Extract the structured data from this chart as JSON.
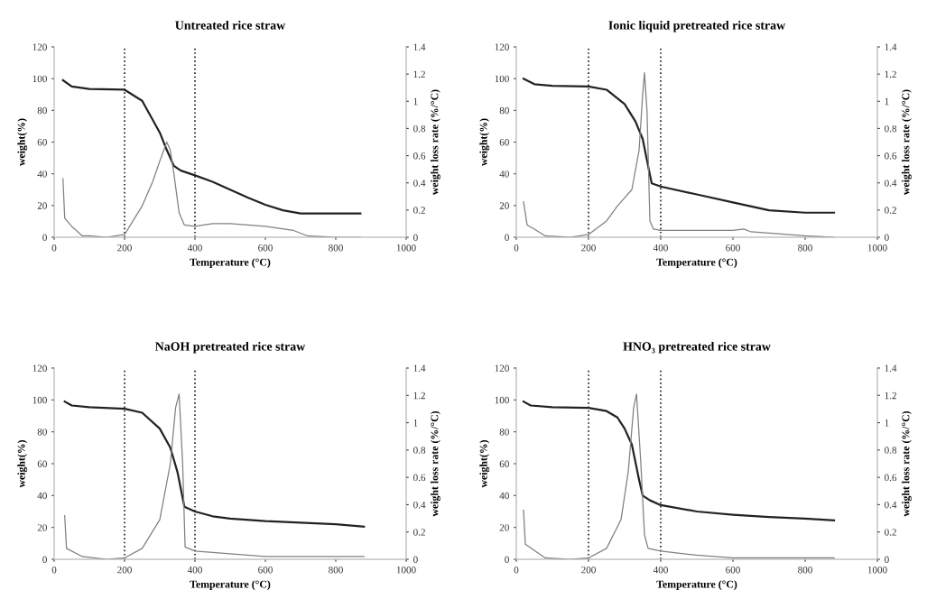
{
  "chart_data": [
    {
      "type": "line",
      "title": "Untreated rice straw",
      "xlabel": "Temperature (°C)",
      "ylabel": "weight(%)",
      "y2label": "weight loss rate (%/°C)",
      "xlim": [
        0,
        1000
      ],
      "xticks": [
        0,
        200,
        400,
        600,
        800,
        1000
      ],
      "ylim": [
        0,
        120
      ],
      "yticks": [
        0,
        20,
        40,
        60,
        80,
        100,
        120
      ],
      "y2lim": [
        0,
        1.4
      ],
      "y2ticks": [
        0,
        0.2,
        0.4,
        0.6,
        0.8,
        1,
        1.2,
        1.4
      ],
      "ref_lines": [
        {
          "axis": "x",
          "value": 200,
          "line_style": "dotted",
          "color": "#222222"
        },
        {
          "axis": "x",
          "value": 400,
          "line_style": "dotted",
          "color": "#222222"
        }
      ],
      "series": [
        {
          "color": "#222222",
          "x": [
            25,
            50,
            100,
            200,
            250,
            300,
            320,
            340,
            360,
            400,
            450,
            500,
            550,
            600,
            650,
            700,
            750,
            800,
            870
          ],
          "values": [
            99,
            95,
            93.5,
            93,
            86,
            66,
            55,
            45,
            42,
            39,
            35,
            30,
            25,
            20.5,
            17,
            15,
            15,
            15,
            15
          ]
        },
        {
          "color": "#808080",
          "axis": "y2",
          "x": [
            25,
            30,
            50,
            80,
            100,
            150,
            200,
            250,
            280,
            300,
            320,
            330,
            340,
            355,
            370,
            400,
            450,
            500,
            600,
            680,
            720,
            800,
            870
          ],
          "values": [
            0.43,
            0.14,
            0.08,
            0.01,
            0.01,
            0.0,
            0.02,
            0.23,
            0.41,
            0.56,
            0.7,
            0.64,
            0.47,
            0.18,
            0.09,
            0.08,
            0.1,
            0.1,
            0.08,
            0.05,
            0.01,
            0.0,
            0.0
          ]
        }
      ]
    },
    {
      "type": "line",
      "title": "Ionic liquid pretreated rice straw",
      "xlabel": "Temperature (°C)",
      "ylabel": "weight(%)",
      "y2label": "weight loss rate (%/°C)",
      "xlim": [
        0,
        1000
      ],
      "xticks": [
        0,
        200,
        400,
        600,
        800,
        1000
      ],
      "ylim": [
        0,
        120
      ],
      "yticks": [
        0,
        20,
        40,
        60,
        80,
        100,
        120
      ],
      "y2lim": [
        0,
        1.4
      ],
      "y2ticks": [
        0,
        0.2,
        0.4,
        0.6,
        0.8,
        1,
        1.2,
        1.4
      ],
      "ref_lines": [
        {
          "axis": "x",
          "value": 200,
          "line_style": "dotted",
          "color": "#222222"
        },
        {
          "axis": "x",
          "value": 400,
          "line_style": "dotted",
          "color": "#222222"
        }
      ],
      "series": [
        {
          "color": "#222222",
          "x": [
            20,
            50,
            100,
            200,
            250,
            300,
            330,
            350,
            365,
            375,
            400,
            500,
            600,
            700,
            800,
            880
          ],
          "values": [
            100,
            96.5,
            95.5,
            95,
            93,
            84,
            73,
            62,
            45,
            34,
            32,
            27,
            22,
            17,
            15.5,
            15.5
          ]
        },
        {
          "color": "#808080",
          "axis": "y2",
          "x": [
            20,
            30,
            50,
            80,
            150,
            200,
            250,
            280,
            320,
            340,
            350,
            355,
            362,
            370,
            380,
            400,
            600,
            630,
            650,
            750,
            800,
            880
          ],
          "values": [
            0.26,
            0.09,
            0.06,
            0.01,
            0.0,
            0.02,
            0.12,
            0.23,
            0.35,
            0.64,
            1.05,
            1.21,
            0.93,
            0.12,
            0.06,
            0.05,
            0.05,
            0.06,
            0.04,
            0.02,
            0.01,
            0.0
          ]
        }
      ]
    },
    {
      "type": "line",
      "title": "NaOH pretreated rice straw",
      "xlabel": "Temperature (°C)",
      "ylabel": "weight(%)",
      "y2label": "weight loss rate (%/°C)",
      "xlim": [
        0,
        1000
      ],
      "xticks": [
        0,
        200,
        400,
        600,
        800,
        1000
      ],
      "ylim": [
        0,
        120
      ],
      "yticks": [
        0,
        20,
        40,
        60,
        80,
        100,
        120
      ],
      "y2lim": [
        0,
        1.4
      ],
      "y2ticks": [
        0,
        0.2,
        0.4,
        0.6,
        0.8,
        1,
        1.2,
        1.4
      ],
      "ref_lines": [
        {
          "axis": "x",
          "value": 200,
          "line_style": "dotted",
          "color": "#222222"
        },
        {
          "axis": "x",
          "value": 400,
          "line_style": "dotted",
          "color": "#222222"
        }
      ],
      "series": [
        {
          "color": "#222222",
          "x": [
            30,
            50,
            100,
            200,
            250,
            300,
            330,
            350,
            370,
            400,
            450,
            500,
            600,
            700,
            800,
            880
          ],
          "values": [
            99,
            96.5,
            95.5,
            94.5,
            92,
            82,
            70,
            55,
            33,
            30,
            27,
            25.5,
            24,
            23,
            22,
            20.5
          ]
        },
        {
          "color": "#808080",
          "axis": "y2",
          "x": [
            30,
            35,
            80,
            150,
            200,
            250,
            300,
            330,
            345,
            355,
            365,
            372,
            400,
            500,
            600,
            800,
            880
          ],
          "values": [
            0.32,
            0.08,
            0.02,
            0.0,
            0.01,
            0.08,
            0.29,
            0.7,
            1.11,
            1.21,
            0.7,
            0.09,
            0.06,
            0.04,
            0.02,
            0.02,
            0.02
          ]
        }
      ]
    },
    {
      "type": "line",
      "title": "HNO₃ pretreated rice straw",
      "xlabel": "Temperature (°C)",
      "ylabel": "weight(%)",
      "y2label": "weight loss rate (%/°C)",
      "xlim": [
        0,
        1000
      ],
      "xticks": [
        0,
        200,
        400,
        600,
        800,
        1000
      ],
      "ylim": [
        0,
        120
      ],
      "yticks": [
        0,
        20,
        40,
        60,
        80,
        100,
        120
      ],
      "y2lim": [
        0,
        1.4
      ],
      "y2ticks": [
        0,
        0.2,
        0.4,
        0.6,
        0.8,
        1,
        1.2,
        1.4
      ],
      "ref_lines": [
        {
          "axis": "x",
          "value": 200,
          "line_style": "dotted",
          "color": "#222222"
        },
        {
          "axis": "x",
          "value": 400,
          "line_style": "dotted",
          "color": "#222222"
        }
      ],
      "series": [
        {
          "color": "#222222",
          "x": [
            20,
            40,
            100,
            200,
            250,
            280,
            300,
            320,
            340,
            350,
            370,
            400,
            500,
            600,
            700,
            800,
            880
          ],
          "values": [
            99,
            96.5,
            95.5,
            95,
            93,
            89,
            82,
            72,
            50,
            40,
            37,
            34,
            30,
            28,
            26.5,
            25.5,
            24.5
          ]
        },
        {
          "color": "#808080",
          "axis": "y2",
          "x": [
            20,
            25,
            80,
            150,
            200,
            250,
            290,
            310,
            325,
            333,
            345,
            355,
            365,
            400,
            500,
            600,
            880
          ],
          "values": [
            0.36,
            0.11,
            0.01,
            0.0,
            0.01,
            0.08,
            0.29,
            0.64,
            1.11,
            1.21,
            0.7,
            0.18,
            0.08,
            0.06,
            0.03,
            0.01,
            0.01
          ]
        }
      ]
    }
  ]
}
